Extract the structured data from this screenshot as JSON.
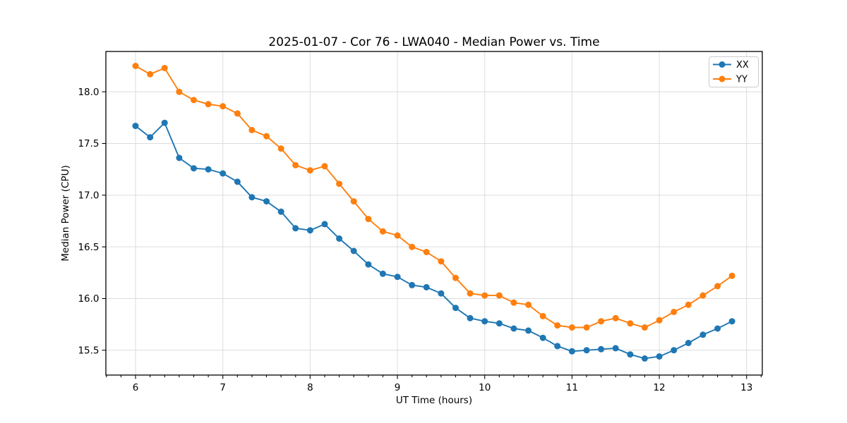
{
  "chart_data": {
    "type": "line",
    "title": "2025-01-07 - Cor 76 - LWA040 - Median Power vs. Time",
    "xlabel": "UT Time (hours)",
    "ylabel": "Median Power (CPU)",
    "xlim": [
      5.66,
      13.18
    ],
    "ylim": [
      15.26,
      18.39
    ],
    "x_ticks": [
      6,
      7,
      8,
      9,
      10,
      11,
      12,
      13
    ],
    "y_ticks": [
      15.5,
      16.0,
      16.5,
      17.0,
      17.5,
      18.0
    ],
    "x_minor_tick_step_hours": 0.1667,
    "grid": true,
    "legend_position": "upper right",
    "background_color": "#ffffff",
    "grid_color": "#dcdcdc",
    "x": [
      6.0,
      6.167,
      6.333,
      6.5,
      6.667,
      6.833,
      7.0,
      7.167,
      7.333,
      7.5,
      7.667,
      7.833,
      8.0,
      8.167,
      8.333,
      8.5,
      8.667,
      8.833,
      9.0,
      9.167,
      9.333,
      9.5,
      9.667,
      9.833,
      10.0,
      10.167,
      10.333,
      10.5,
      10.667,
      10.833,
      11.0,
      11.167,
      11.333,
      11.5,
      11.667,
      11.833,
      12.0,
      12.167,
      12.333,
      12.5,
      12.667,
      12.833
    ],
    "series": [
      {
        "name": "XX",
        "color": "#1f77b4",
        "marker": "circle",
        "values": [
          17.67,
          17.56,
          17.7,
          17.36,
          17.26,
          17.25,
          17.21,
          17.13,
          16.98,
          16.94,
          16.84,
          16.68,
          16.66,
          16.72,
          16.58,
          16.46,
          16.33,
          16.24,
          16.21,
          16.13,
          16.11,
          16.05,
          15.91,
          15.81,
          15.78,
          15.76,
          15.71,
          15.69,
          15.62,
          15.54,
          15.49,
          15.5,
          15.51,
          15.52,
          15.46,
          15.42,
          15.44,
          15.5,
          15.57,
          15.65,
          15.71,
          15.78
        ]
      },
      {
        "name": "YY",
        "color": "#ff7f0e",
        "marker": "circle",
        "values": [
          18.25,
          18.17,
          18.23,
          18.0,
          17.92,
          17.88,
          17.86,
          17.79,
          17.63,
          17.57,
          17.45,
          17.29,
          17.24,
          17.28,
          17.11,
          16.94,
          16.77,
          16.65,
          16.61,
          16.5,
          16.45,
          16.36,
          16.2,
          16.05,
          16.03,
          16.03,
          15.96,
          15.94,
          15.83,
          15.74,
          15.72,
          15.72,
          15.78,
          15.81,
          15.76,
          15.72,
          15.79,
          15.87,
          15.94,
          16.03,
          16.12,
          16.22
        ]
      }
    ]
  }
}
